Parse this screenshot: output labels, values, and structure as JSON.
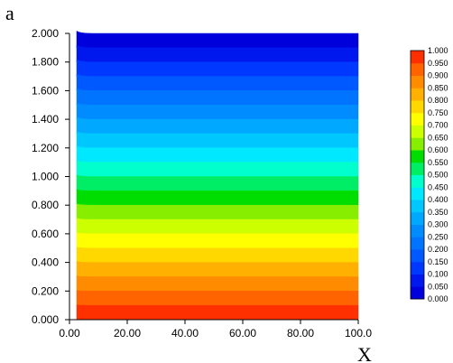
{
  "panel_label": "a",
  "chart_data": {
    "type": "heatmap",
    "subtype": "filled-contour",
    "xlabel": "X",
    "ylabel": "",
    "xlim": [
      0,
      100
    ],
    "ylim": [
      0,
      2
    ],
    "x_ticks": [
      "0.00",
      "20.00",
      "40.00",
      "60.00",
      "80.00",
      "100.0"
    ],
    "y_ticks": [
      "0.000",
      "0.200",
      "0.400",
      "0.600",
      "0.800",
      "1.000",
      "1.200",
      "1.400",
      "1.600",
      "1.800",
      "2.000"
    ],
    "field": {
      "x_start": 2.5,
      "description_value_at_y": {
        "y": [
          0,
          2
        ],
        "value": [
          1,
          0
        ]
      }
    },
    "colorbar": {
      "min": 0,
      "max": 1,
      "levels": [
        "0.000",
        "0.050",
        "0.100",
        "0.150",
        "0.200",
        "0.250",
        "0.300",
        "0.350",
        "0.400",
        "0.450",
        "0.500",
        "0.550",
        "0.600",
        "0.650",
        "0.700",
        "0.750",
        "0.800",
        "0.850",
        "0.900",
        "0.950",
        "1.000"
      ],
      "colors": [
        "#0000dd",
        "#0018ee",
        "#0038ff",
        "#0058ff",
        "#0074ff",
        "#008cff",
        "#00a8ff",
        "#00c8ff",
        "#00e8ff",
        "#00ffcc",
        "#00ee66",
        "#00dd00",
        "#88ee00",
        "#ccff00",
        "#ffff00",
        "#ffd800",
        "#ffb000",
        "#ff8c00",
        "#ff6400",
        "#ff3000"
      ]
    }
  }
}
